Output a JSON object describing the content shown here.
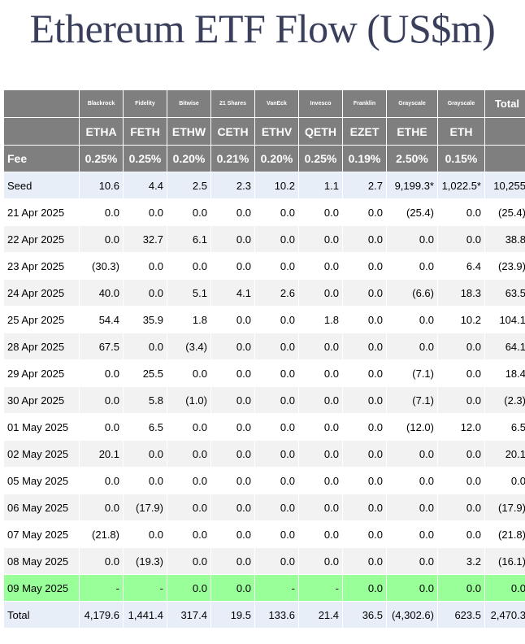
{
  "title": "Ethereum ETF Flow (US$m)",
  "chart_data": {
    "type": "table",
    "title": "Ethereum ETF Flow (US$m)",
    "issuers": [
      "Blackrock",
      "Fidelity",
      "Bitwise",
      "21 Shares",
      "VanEck",
      "Invesco",
      "Franklin",
      "Grayscale",
      "Grayscale"
    ],
    "total_header": "Total",
    "tickers": [
      "ETHA",
      "FETH",
      "ETHW",
      "CETH",
      "ETHV",
      "QETH",
      "EZET",
      "ETHE",
      "ETH"
    ],
    "fee_label": "Fee",
    "fees": [
      "0.25%",
      "0.25%",
      "0.20%",
      "0.21%",
      "0.20%",
      "0.25%",
      "0.19%",
      "2.50%",
      "0.15%"
    ],
    "rows": [
      {
        "date": "Seed",
        "values": [
          "10.6",
          "4.4",
          "2.5",
          "2.3",
          "10.2",
          "1.1",
          "2.7",
          "9,199.3*",
          "1,022.5*"
        ],
        "total": "10,255",
        "style": "seed"
      },
      {
        "date": "21 Apr 2025",
        "values": [
          "0.0",
          "0.0",
          "0.0",
          "0.0",
          "0.0",
          "0.0",
          "0.0",
          "(25.4)",
          "0.0"
        ],
        "total": "(25.4)",
        "style": "plain"
      },
      {
        "date": "22 Apr 2025",
        "values": [
          "0.0",
          "32.7",
          "6.1",
          "0.0",
          "0.0",
          "0.0",
          "0.0",
          "0.0",
          "0.0"
        ],
        "total": "38.8",
        "style": "alt"
      },
      {
        "date": "23 Apr 2025",
        "values": [
          "(30.3)",
          "0.0",
          "0.0",
          "0.0",
          "0.0",
          "0.0",
          "0.0",
          "0.0",
          "6.4"
        ],
        "total": "(23.9)",
        "style": "plain"
      },
      {
        "date": "24 Apr 2025",
        "values": [
          "40.0",
          "0.0",
          "5.1",
          "4.1",
          "2.6",
          "0.0",
          "0.0",
          "(6.6)",
          "18.3"
        ],
        "total": "63.5",
        "style": "alt"
      },
      {
        "date": "25 Apr 2025",
        "values": [
          "54.4",
          "35.9",
          "1.8",
          "0.0",
          "0.0",
          "1.8",
          "0.0",
          "0.0",
          "10.2"
        ],
        "total": "104.1",
        "style": "plain"
      },
      {
        "date": "28 Apr 2025",
        "values": [
          "67.5",
          "0.0",
          "(3.4)",
          "0.0",
          "0.0",
          "0.0",
          "0.0",
          "0.0",
          "0.0"
        ],
        "total": "64.1",
        "style": "alt"
      },
      {
        "date": "29 Apr 2025",
        "values": [
          "0.0",
          "25.5",
          "0.0",
          "0.0",
          "0.0",
          "0.0",
          "0.0",
          "(7.1)",
          "0.0"
        ],
        "total": "18.4",
        "style": "plain"
      },
      {
        "date": "30 Apr 2025",
        "values": [
          "0.0",
          "5.8",
          "(1.0)",
          "0.0",
          "0.0",
          "0.0",
          "0.0",
          "(7.1)",
          "0.0"
        ],
        "total": "(2.3)",
        "style": "alt"
      },
      {
        "date": "01 May 2025",
        "values": [
          "0.0",
          "6.5",
          "0.0",
          "0.0",
          "0.0",
          "0.0",
          "0.0",
          "(12.0)",
          "12.0"
        ],
        "total": "6.5",
        "style": "plain"
      },
      {
        "date": "02 May 2025",
        "values": [
          "20.1",
          "0.0",
          "0.0",
          "0.0",
          "0.0",
          "0.0",
          "0.0",
          "0.0",
          "0.0"
        ],
        "total": "20.1",
        "style": "alt"
      },
      {
        "date": "05 May 2025",
        "values": [
          "0.0",
          "0.0",
          "0.0",
          "0.0",
          "0.0",
          "0.0",
          "0.0",
          "0.0",
          "0.0"
        ],
        "total": "0.0",
        "style": "plain"
      },
      {
        "date": "06 May 2025",
        "values": [
          "0.0",
          "(17.9)",
          "0.0",
          "0.0",
          "0.0",
          "0.0",
          "0.0",
          "0.0",
          "0.0"
        ],
        "total": "(17.9)",
        "style": "alt"
      },
      {
        "date": "07 May 2025",
        "values": [
          "(21.8)",
          "0.0",
          "0.0",
          "0.0",
          "0.0",
          "0.0",
          "0.0",
          "0.0",
          "0.0"
        ],
        "total": "(21.8)",
        "style": "plain"
      },
      {
        "date": "08 May 2025",
        "values": [
          "0.0",
          "(19.3)",
          "0.0",
          "0.0",
          "0.0",
          "0.0",
          "0.0",
          "0.0",
          "3.2"
        ],
        "total": "(16.1)",
        "style": "alt"
      },
      {
        "date": "09 May 2025",
        "values": [
          "-",
          "-",
          "0.0",
          "0.0",
          "-",
          "-",
          "0.0",
          "0.0",
          "0.0"
        ],
        "total": "0.0",
        "style": "today"
      },
      {
        "date": "Total",
        "values": [
          "4,179.6",
          "1,441.4",
          "317.4",
          "19.5",
          "133.6",
          "21.4",
          "36.5",
          "(4,302.6)",
          "623.5"
        ],
        "total": "2,470.3",
        "style": "total"
      }
    ]
  }
}
